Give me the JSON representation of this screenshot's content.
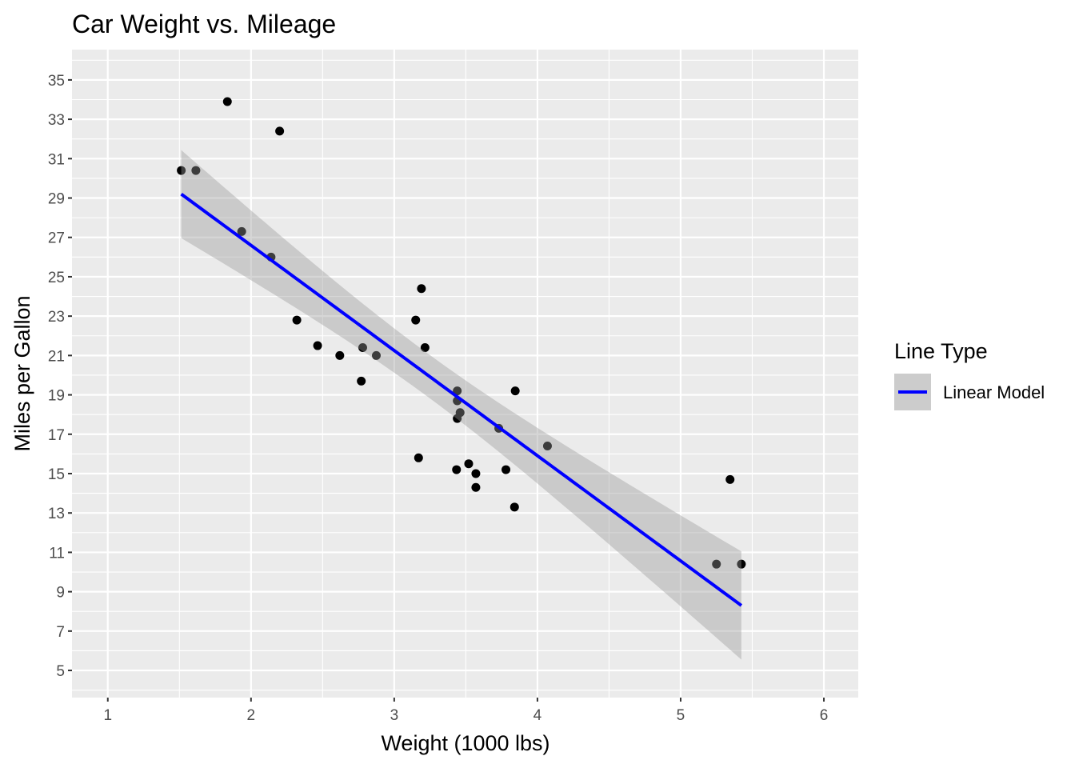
{
  "chart_data": {
    "type": "scatter",
    "title": "Car Weight vs. Mileage",
    "xlabel": "Weight (1000 lbs)",
    "ylabel": "Miles per Gallon",
    "xlim": [
      0.75,
      6.24
    ],
    "ylim": [
      3.62,
      36.54
    ],
    "xticks": [
      1,
      2,
      3,
      4,
      5,
      6
    ],
    "yticks": [
      5,
      7,
      9,
      11,
      13,
      15,
      17,
      19,
      21,
      23,
      25,
      27,
      29,
      31,
      33,
      35
    ],
    "grid": true,
    "points": [
      [
        2.62,
        21.0
      ],
      [
        2.875,
        21.0
      ],
      [
        2.32,
        22.8
      ],
      [
        3.215,
        21.4
      ],
      [
        3.44,
        18.7
      ],
      [
        3.46,
        18.1
      ],
      [
        3.57,
        14.3
      ],
      [
        3.19,
        24.4
      ],
      [
        3.15,
        22.8
      ],
      [
        3.44,
        19.2
      ],
      [
        3.44,
        17.8
      ],
      [
        4.07,
        16.4
      ],
      [
        3.73,
        17.3
      ],
      [
        3.78,
        15.2
      ],
      [
        5.25,
        10.4
      ],
      [
        5.424,
        10.4
      ],
      [
        5.345,
        14.7
      ],
      [
        2.2,
        32.4
      ],
      [
        1.615,
        30.4
      ],
      [
        1.835,
        33.9
      ],
      [
        2.465,
        21.5
      ],
      [
        3.52,
        15.5
      ],
      [
        3.435,
        15.2
      ],
      [
        3.84,
        13.3
      ],
      [
        3.845,
        19.2
      ],
      [
        1.935,
        27.3
      ],
      [
        2.14,
        26.0
      ],
      [
        1.513,
        30.4
      ],
      [
        3.17,
        15.8
      ],
      [
        2.77,
        19.7
      ],
      [
        3.57,
        15.0
      ],
      [
        2.78,
        21.4
      ]
    ],
    "fit": {
      "intercept": 37.285,
      "slope": -5.344,
      "x_range": [
        1.513,
        5.424
      ],
      "confidence": 0.95
    },
    "legend": {
      "title": "Line Type",
      "entries": [
        "Linear Model"
      ],
      "placement": "right"
    },
    "colors": {
      "line": "#0000ff",
      "ribbon": "#999999",
      "panel": "#ebebeb",
      "point": "#000000"
    }
  }
}
